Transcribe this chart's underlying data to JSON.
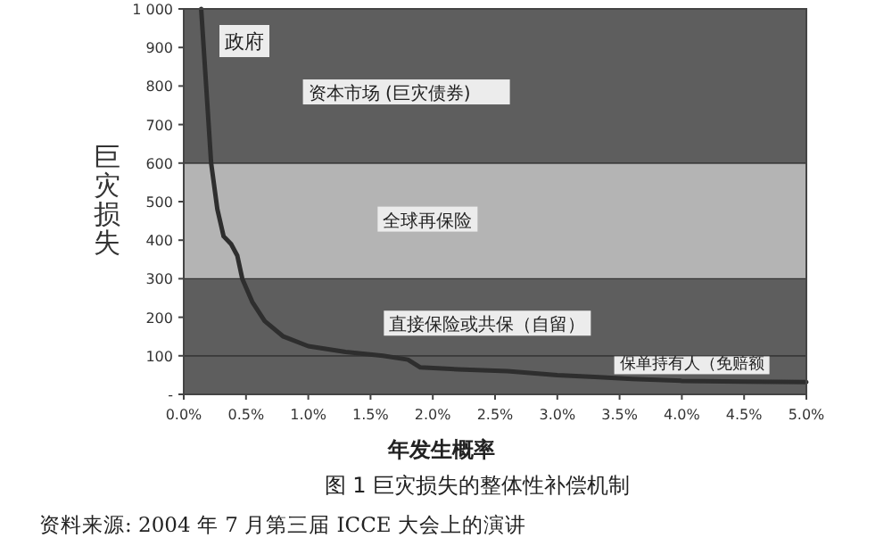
{
  "chart_data": {
    "type": "line",
    "title": "图 1 巨灾损失的整体性补偿机制",
    "xlabel": "年发生概率",
    "ylabel": "巨灾损失",
    "x": [
      0.14,
      0.18,
      0.22,
      0.27,
      0.32,
      0.38,
      0.43,
      0.47,
      0.55,
      0.65,
      0.8,
      1.0,
      1.3,
      1.6,
      1.8,
      1.9,
      2.2,
      2.6,
      3.0,
      3.3,
      3.6,
      4.0,
      4.5,
      5.0
    ],
    "series": [
      {
        "color": "#2e2e2e",
        "values": [
          1000,
          800,
          600,
          480,
          410,
          390,
          360,
          300,
          240,
          190,
          150,
          125,
          110,
          100,
          90,
          70,
          65,
          60,
          50,
          45,
          40,
          35,
          33,
          32
        ]
      }
    ],
    "xlim": [
      0,
      5
    ],
    "xticks": [
      {
        "value": 0,
        "label": "0.0%"
      },
      {
        "value": 0.5,
        "label": "0.5%"
      },
      {
        "value": 1,
        "label": "1.0%"
      },
      {
        "value": 1.5,
        "label": "1.5%"
      },
      {
        "value": 2,
        "label": "2.0%"
      },
      {
        "value": 2.5,
        "label": "2.5%"
      },
      {
        "value": 3,
        "label": "3.0%"
      },
      {
        "value": 3.5,
        "label": "3.5%"
      },
      {
        "value": 4,
        "label": "4.0%"
      },
      {
        "value": 4.5,
        "label": "4.5%"
      },
      {
        "value": 5,
        "label": "5.0%"
      }
    ],
    "ylim": [
      0,
      1000
    ],
    "yticks": [
      {
        "value": 0,
        "label": "-"
      },
      100,
      200,
      300,
      400,
      500,
      600,
      700,
      800,
      900,
      {
        "value": 1000,
        "label": "1 000"
      }
    ],
    "bands": [
      {
        "axis": "y",
        "from": 0,
        "to": 100,
        "label": "保单持有人（免赔额",
        "color": "#5e5e5e"
      },
      {
        "axis": "y",
        "from": 100,
        "to": 300,
        "label": "直接保险或共保（自留）",
        "color": "#5e5e5e"
      },
      {
        "axis": "y",
        "from": 300,
        "to": 600,
        "label": "全球再保险",
        "color": "#b4b4b4"
      },
      {
        "axis": "y",
        "from": 600,
        "to": 1000,
        "label": "资本市场 (巨灾债券)",
        "color": "#5e5e5e"
      }
    ],
    "annotations": [
      "政府",
      "资料来源: 2004 年 7 月第三届 ICCE 大会上的演讲"
    ],
    "grid": false
  }
}
